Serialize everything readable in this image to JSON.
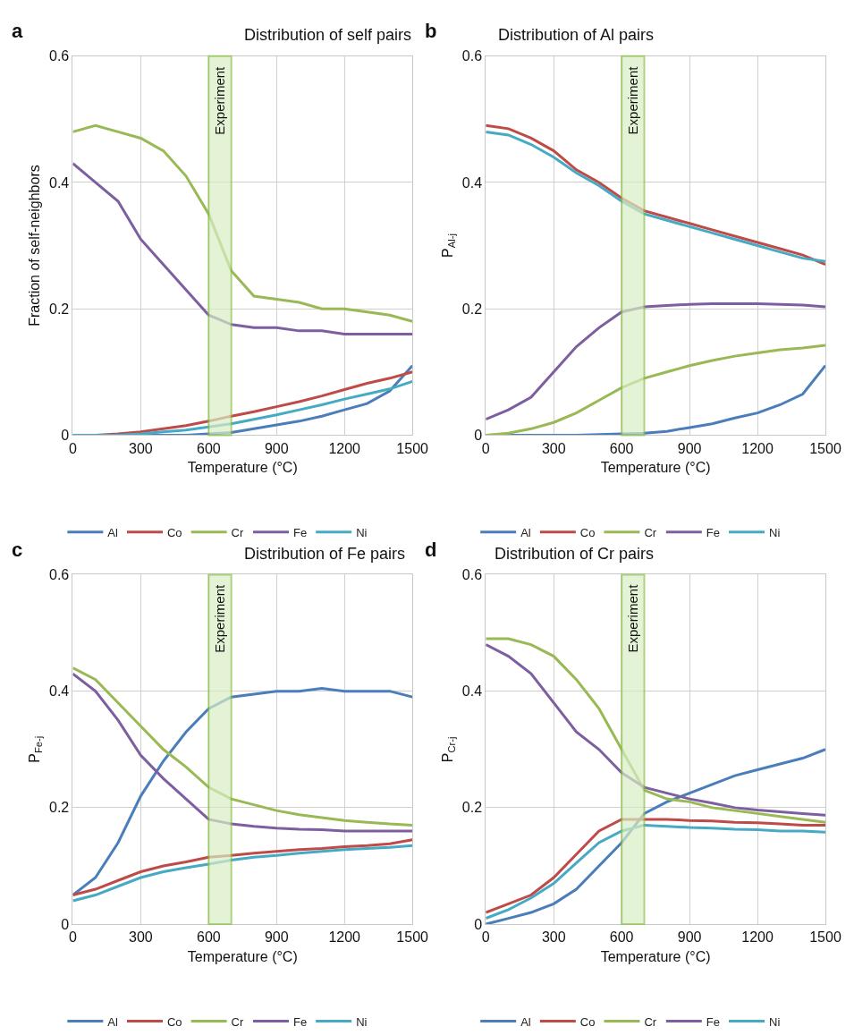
{
  "chart_data": [
    {
      "type": "line",
      "title": "Distribution of self pairs",
      "annotations": [
        "a"
      ],
      "xlabel": "Temperature (°C)",
      "ylabel": "Fraction of self-neighbors",
      "x": [
        0,
        100,
        200,
        300,
        400,
        500,
        600,
        700,
        800,
        900,
        1000,
        1100,
        1200,
        1300,
        1400,
        1500
      ],
      "xlim": [
        0,
        1500
      ],
      "xticks": [
        0,
        300,
        600,
        900,
        1200,
        1500
      ],
      "ylim": [
        0,
        0.6
      ],
      "yticks": [
        0,
        0.2,
        0.4,
        0.6
      ],
      "grid": true,
      "legend": "bottom",
      "line_style": "solid",
      "bands": [
        {
          "axis": "x",
          "from": 600,
          "to": 700,
          "label": "Experiment",
          "color": "#d9eec4"
        }
      ],
      "series": [
        {
          "name": "Al",
          "color": "#4a7ebb",
          "values": [
            0,
            0,
            0,
            0,
            0,
            0,
            0.002,
            0.004,
            0.01,
            0.016,
            0.022,
            0.03,
            0.04,
            0.05,
            0.07,
            0.11
          ]
        },
        {
          "name": "Co",
          "color": "#be4b48",
          "values": [
            0,
            0,
            0.002,
            0.005,
            0.01,
            0.015,
            0.022,
            0.03,
            0.037,
            0.045,
            0.053,
            0.062,
            0.072,
            0.082,
            0.09,
            0.1
          ]
        },
        {
          "name": "Cr",
          "color": "#98b954",
          "values": [
            0.48,
            0.49,
            0.48,
            0.47,
            0.45,
            0.41,
            0.35,
            0.26,
            0.22,
            0.215,
            0.21,
            0.2,
            0.2,
            0.195,
            0.19,
            0.18
          ]
        },
        {
          "name": "Fe",
          "color": "#7d5fa0",
          "values": [
            0.43,
            0.4,
            0.37,
            0.31,
            0.27,
            0.23,
            0.19,
            0.175,
            0.17,
            0.17,
            0.165,
            0.165,
            0.16,
            0.16,
            0.16,
            0.16
          ]
        },
        {
          "name": "Ni",
          "color": "#46aac5",
          "values": [
            0,
            0,
            0,
            0.002,
            0.005,
            0.008,
            0.013,
            0.018,
            0.025,
            0.032,
            0.04,
            0.048,
            0.057,
            0.065,
            0.073,
            0.085
          ]
        }
      ]
    },
    {
      "type": "line",
      "title": "Distribution of Al pairs",
      "annotations": [
        "b"
      ],
      "xlabel": "Temperature (°C)",
      "ylabel": "P$_{Al-j}$",
      "x": [
        0,
        100,
        200,
        300,
        400,
        500,
        600,
        700,
        800,
        900,
        1000,
        1100,
        1200,
        1300,
        1400,
        1500
      ],
      "xlim": [
        0,
        1500
      ],
      "xticks": [
        0,
        300,
        600,
        900,
        1200,
        1500
      ],
      "ylim": [
        0,
        0.6
      ],
      "yticks": [
        0,
        0.2,
        0.4,
        0.6
      ],
      "grid": true,
      "legend": "bottom",
      "line_style": "solid",
      "bands": [
        {
          "axis": "x",
          "from": 600,
          "to": 700,
          "label": "Experiment",
          "color": "#d9eec4"
        }
      ],
      "series": [
        {
          "name": "Al",
          "color": "#4a7ebb",
          "values": [
            0,
            0,
            0,
            0,
            0,
            0.001,
            0.002,
            0.003,
            0.006,
            0.012,
            0.018,
            0.027,
            0.035,
            0.048,
            0.065,
            0.11
          ]
        },
        {
          "name": "Co",
          "color": "#be4b48",
          "values": [
            0.49,
            0.485,
            0.47,
            0.45,
            0.42,
            0.4,
            0.375,
            0.355,
            0.345,
            0.335,
            0.325,
            0.315,
            0.305,
            0.295,
            0.285,
            0.27
          ]
        },
        {
          "name": "Cr",
          "color": "#98b954",
          "values": [
            0,
            0.003,
            0.01,
            0.02,
            0.035,
            0.055,
            0.075,
            0.09,
            0.1,
            0.11,
            0.118,
            0.125,
            0.13,
            0.135,
            0.138,
            0.142
          ]
        },
        {
          "name": "Fe",
          "color": "#7d5fa0",
          "values": [
            0.025,
            0.04,
            0.06,
            0.1,
            0.14,
            0.17,
            0.195,
            0.203,
            0.205,
            0.207,
            0.208,
            0.208,
            0.208,
            0.207,
            0.206,
            0.203
          ]
        },
        {
          "name": "Ni",
          "color": "#46aac5",
          "values": [
            0.48,
            0.475,
            0.46,
            0.44,
            0.415,
            0.395,
            0.37,
            0.35,
            0.34,
            0.33,
            0.32,
            0.31,
            0.3,
            0.29,
            0.28,
            0.275
          ]
        }
      ]
    },
    {
      "type": "line",
      "title": "Distribution of Fe pairs",
      "annotations": [
        "c"
      ],
      "xlabel": "Temperature (°C)",
      "ylabel": "P$_{Fe-j}$",
      "x": [
        0,
        100,
        200,
        300,
        400,
        500,
        600,
        700,
        800,
        900,
        1000,
        1100,
        1200,
        1300,
        1400,
        1500
      ],
      "xlim": [
        0,
        1500
      ],
      "xticks": [
        0,
        300,
        600,
        900,
        1200,
        1500
      ],
      "ylim": [
        0,
        0.6
      ],
      "yticks": [
        0,
        0.2,
        0.4,
        0.6
      ],
      "grid": true,
      "legend": "bottom",
      "line_style": "solid",
      "bands": [
        {
          "axis": "x",
          "from": 600,
          "to": 700,
          "label": "Experiment",
          "color": "#d9eec4"
        }
      ],
      "series": [
        {
          "name": "Al",
          "color": "#4a7ebb",
          "values": [
            0.05,
            0.08,
            0.14,
            0.22,
            0.28,
            0.33,
            0.37,
            0.39,
            0.395,
            0.4,
            0.4,
            0.405,
            0.4,
            0.4,
            0.4,
            0.39
          ]
        },
        {
          "name": "Co",
          "color": "#be4b48",
          "values": [
            0.05,
            0.06,
            0.075,
            0.09,
            0.1,
            0.107,
            0.115,
            0.118,
            0.122,
            0.125,
            0.128,
            0.13,
            0.133,
            0.135,
            0.138,
            0.145
          ]
        },
        {
          "name": "Cr",
          "color": "#98b954",
          "values": [
            0.44,
            0.42,
            0.38,
            0.34,
            0.3,
            0.27,
            0.235,
            0.215,
            0.205,
            0.195,
            0.188,
            0.183,
            0.178,
            0.175,
            0.172,
            0.17
          ]
        },
        {
          "name": "Fe",
          "color": "#7d5fa0",
          "values": [
            0.43,
            0.4,
            0.35,
            0.29,
            0.25,
            0.215,
            0.18,
            0.172,
            0.168,
            0.165,
            0.163,
            0.162,
            0.16,
            0.16,
            0.16,
            0.16
          ]
        },
        {
          "name": "Ni",
          "color": "#46aac5",
          "values": [
            0.04,
            0.05,
            0.065,
            0.08,
            0.09,
            0.097,
            0.103,
            0.11,
            0.115,
            0.118,
            0.122,
            0.125,
            0.128,
            0.13,
            0.132,
            0.135
          ]
        }
      ]
    },
    {
      "type": "line",
      "title": "Distribution of Cr pairs",
      "annotations": [
        "d"
      ],
      "xlabel": "Temperature (°C)",
      "ylabel": "P$_{Cr-j}$",
      "x": [
        0,
        100,
        200,
        300,
        400,
        500,
        600,
        700,
        800,
        900,
        1000,
        1100,
        1200,
        1300,
        1400,
        1500
      ],
      "xlim": [
        0,
        1500
      ],
      "xticks": [
        0,
        300,
        600,
        900,
        1200,
        1500
      ],
      "ylim": [
        0,
        0.6
      ],
      "yticks": [
        0,
        0.2,
        0.4,
        0.6
      ],
      "grid": true,
      "legend": "bottom",
      "line_style": "solid",
      "bands": [
        {
          "axis": "x",
          "from": 600,
          "to": 700,
          "label": "Experiment",
          "color": "#d9eec4"
        }
      ],
      "series": [
        {
          "name": "Al",
          "color": "#4a7ebb",
          "values": [
            0,
            0.01,
            0.02,
            0.035,
            0.06,
            0.1,
            0.14,
            0.19,
            0.21,
            0.225,
            0.24,
            0.255,
            0.265,
            0.275,
            0.285,
            0.3
          ]
        },
        {
          "name": "Co",
          "color": "#be4b48",
          "values": [
            0.02,
            0.035,
            0.05,
            0.08,
            0.12,
            0.16,
            0.18,
            0.18,
            0.18,
            0.178,
            0.177,
            0.175,
            0.174,
            0.172,
            0.17,
            0.17
          ]
        },
        {
          "name": "Cr",
          "color": "#98b954",
          "values": [
            0.49,
            0.49,
            0.48,
            0.46,
            0.42,
            0.37,
            0.3,
            0.23,
            0.215,
            0.21,
            0.2,
            0.195,
            0.19,
            0.185,
            0.18,
            0.175
          ]
        },
        {
          "name": "Fe",
          "color": "#7d5fa0",
          "values": [
            0.48,
            0.46,
            0.43,
            0.38,
            0.33,
            0.3,
            0.26,
            0.235,
            0.225,
            0.215,
            0.208,
            0.2,
            0.196,
            0.193,
            0.19,
            0.187
          ]
        },
        {
          "name": "Ni",
          "color": "#46aac5",
          "values": [
            0.01,
            0.025,
            0.045,
            0.07,
            0.105,
            0.14,
            0.16,
            0.17,
            0.168,
            0.166,
            0.165,
            0.163,
            0.162,
            0.16,
            0.16,
            0.158
          ]
        }
      ]
    }
  ]
}
